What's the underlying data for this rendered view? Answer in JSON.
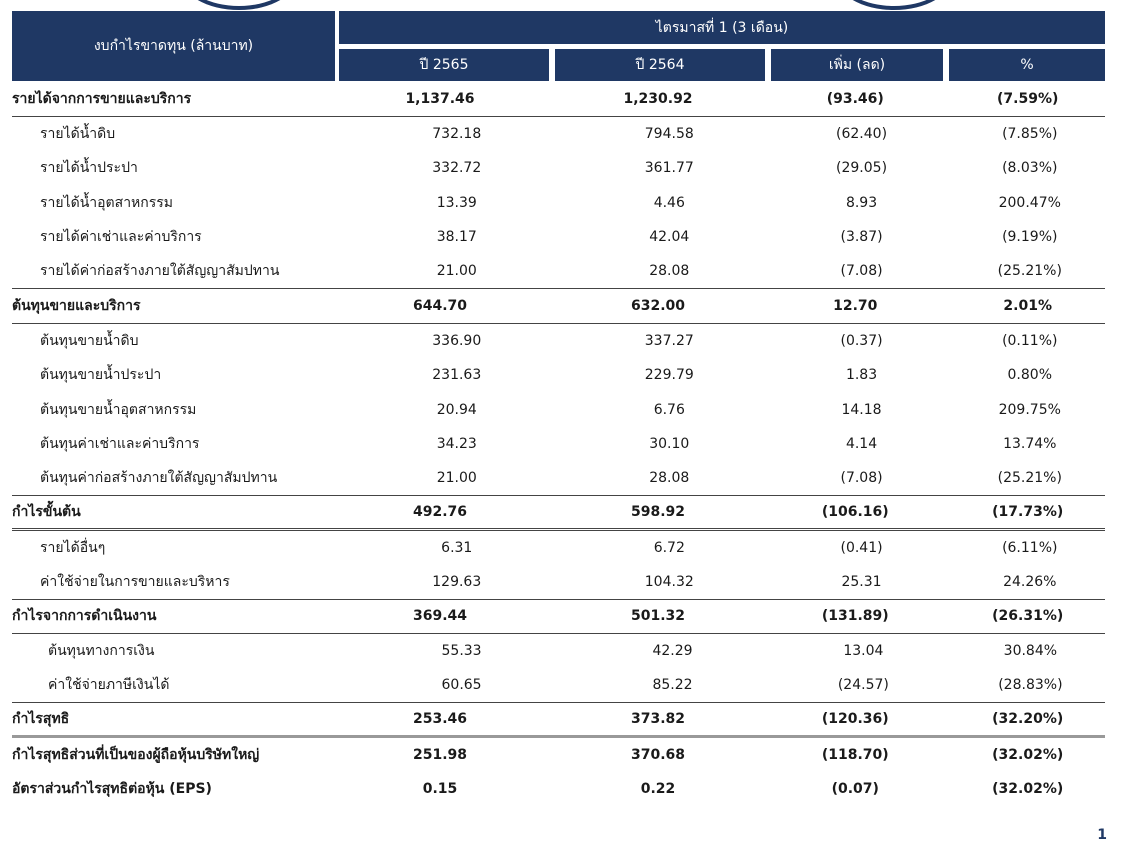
{
  "header": {
    "row_label": "งบกำไรขาดทุน (ล้านบาท)",
    "period": "ไตรมาสที่ 1 (3 เดือน)",
    "columns": [
      "ปี 2565",
      "ปี 2564",
      "เพิ่ม (ลด)",
      "%"
    ]
  },
  "rows": [
    {
      "label": "รายได้จากการขายและบริการ",
      "v1": "1,137.46",
      "v2": "1,230.92",
      "v3": "(93.46)",
      "v4": "(7.59%)",
      "style": "bold bb"
    },
    {
      "label": "รายได้น้ำดิบ",
      "v1": "732.18",
      "v2": "794.58",
      "v3": "(62.40)",
      "v4": "(7.85%)",
      "style": "ind1"
    },
    {
      "label": "รายได้น้ำประปา",
      "v1": "332.72",
      "v2": "361.77",
      "v3": "(29.05)",
      "v4": "(8.03%)",
      "style": "ind1"
    },
    {
      "label": "รายได้น้ำอุตสาหกรรม",
      "v1": "13.39",
      "v2": "4.46",
      "v3": "8.93",
      "v4": "200.47%",
      "style": "ind1"
    },
    {
      "label": "รายได้ค่าเช่าและค่าบริการ",
      "v1": "38.17",
      "v2": "42.04",
      "v3": "(3.87)",
      "v4": "(9.19%)",
      "style": "ind1"
    },
    {
      "label": "รายได้ค่าก่อสร้างภายใต้สัญญาสัมปทาน",
      "v1": "21.00",
      "v2": "28.08",
      "v3": "(7.08)",
      "v4": "(25.21%)",
      "style": "ind1 bb"
    },
    {
      "label": "ต้นทุนขายและบริการ",
      "v1": "644.70",
      "v2": "632.00",
      "v3": "12.70",
      "v4": "2.01%",
      "style": "bold bb"
    },
    {
      "label": "ต้นทุนขายน้ำดิบ",
      "v1": "336.90",
      "v2": "337.27",
      "v3": "(0.37)",
      "v4": "(0.11%)",
      "style": "ind1"
    },
    {
      "label": "ต้นทุนขายน้ำประปา",
      "v1": "231.63",
      "v2": "229.79",
      "v3": "1.83",
      "v4": "0.80%",
      "style": "ind1"
    },
    {
      "label": "ต้นทุนขายน้ำอุตสาหกรรม",
      "v1": "20.94",
      "v2": "6.76",
      "v3": "14.18",
      "v4": "209.75%",
      "style": "ind1"
    },
    {
      "label": "ต้นทุนค่าเช่าและค่าบริการ",
      "v1": "34.23",
      "v2": "30.10",
      "v3": "4.14",
      "v4": "13.74%",
      "style": "ind1"
    },
    {
      "label": "ต้นทุนค่าก่อสร้างภายใต้สัญญาสัมปทาน",
      "v1": "21.00",
      "v2": "28.08",
      "v3": "(7.08)",
      "v4": "(25.21%)",
      "style": "ind1 bb"
    },
    {
      "label": "กำไรขั้นต้น",
      "v1": "492.76",
      "v2": "598.92",
      "v3": "(106.16)",
      "v4": "(17.73%)",
      "style": "bold dbl"
    },
    {
      "label": "รายได้อื่นๆ",
      "v1": "6.31",
      "v2": "6.72",
      "v3": "(0.41)",
      "v4": "(6.11%)",
      "style": "ind1"
    },
    {
      "label": "ค่าใช้จ่ายในการขายและบริหาร",
      "v1": "129.63",
      "v2": "104.32",
      "v3": "25.31",
      "v4": "24.26%",
      "style": "ind1 bb"
    },
    {
      "label": "กำไรจากการดำเนินงาน",
      "v1": "369.44",
      "v2": "501.32",
      "v3": "(131.89)",
      "v4": "(26.31%)",
      "style": "bold bb"
    },
    {
      "label": "ต้นทุนทางการเงิน",
      "v1": "55.33",
      "v2": "42.29",
      "v3": "13.04",
      "v4": "30.84%",
      "style": "ind2"
    },
    {
      "label": "ค่าใช้จ่ายภาษีเงินได้",
      "v1": "60.65",
      "v2": "85.22",
      "v3": "(24.57)",
      "v4": "(28.83%)",
      "style": "ind2 bb"
    },
    {
      "label": "กำไรสุทธิ",
      "v1": "253.46",
      "v2": "373.82",
      "v3": "(120.36)",
      "v4": "(32.20%)",
      "style": "bold thick"
    },
    {
      "label": "กำไรสุทธิส่วนที่เป็นของผู้ถือหุ้นบริษัทใหญ่",
      "v1": "251.98",
      "v2": "370.68",
      "v3": "(118.70)",
      "v4": "(32.02%)",
      "style": "bold"
    },
    {
      "label": "อัตราส่วนกำไรสุทธิต่อหุ้น (EPS)",
      "v1": "0.15",
      "v2": "0.22",
      "v3": "(0.07)",
      "v4": "(32.02%)",
      "style": "bold"
    }
  ],
  "page_number": "1"
}
